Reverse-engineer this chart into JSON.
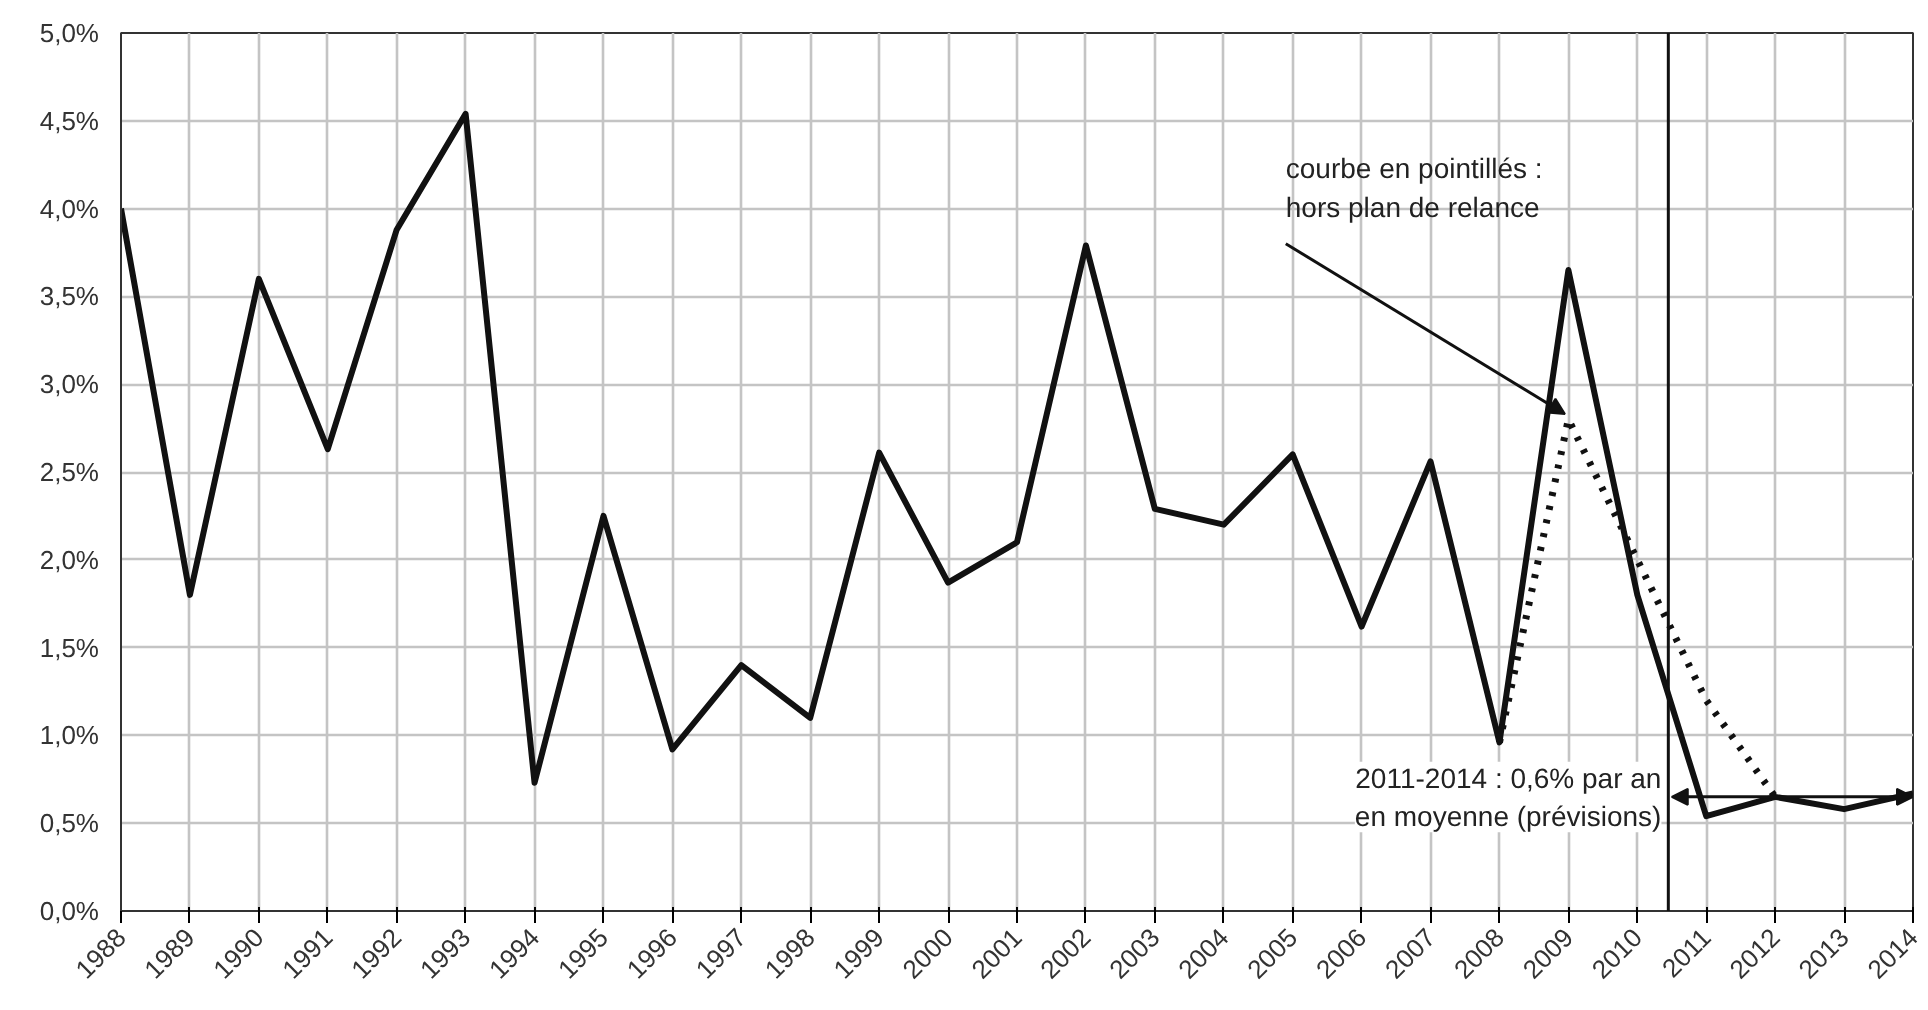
{
  "chart_data": {
    "type": "line",
    "x": [
      1988,
      1989,
      1990,
      1991,
      1992,
      1993,
      1994,
      1995,
      1996,
      1997,
      1998,
      1999,
      2000,
      2001,
      2002,
      2003,
      2004,
      2005,
      2006,
      2007,
      2008,
      2009,
      2010,
      2011,
      2012,
      2013,
      2014
    ],
    "series": [
      {
        "color": "#111111",
        "line_style": "solid",
        "values": [
          4.0,
          1.8,
          3.6,
          2.63,
          3.88,
          4.54,
          0.73,
          2.25,
          0.92,
          1.4,
          1.1,
          2.61,
          1.87,
          2.1,
          3.79,
          2.29,
          2.2,
          2.6,
          1.62,
          2.56,
          0.96,
          3.65,
          1.8,
          0.54,
          0.65,
          0.58,
          0.67
        ]
      },
      {
        "color": "#111111",
        "line_style": "dotted",
        "x": [
          2008,
          2009,
          2010,
          2011,
          2012
        ],
        "values": [
          0.96,
          2.8,
          2.0,
          1.2,
          0.65
        ]
      }
    ],
    "xlim": [
      1988,
      2014
    ],
    "xticks": [
      1988,
      1989,
      1990,
      1991,
      1992,
      1993,
      1994,
      1995,
      1996,
      1997,
      1998,
      1999,
      2000,
      2001,
      2002,
      2003,
      2004,
      2005,
      2006,
      2007,
      2008,
      2009,
      2010,
      2011,
      2012,
      2013,
      2014
    ],
    "ylim": [
      0,
      5
    ],
    "yticks": [
      {
        "value": 0,
        "label": "0,0%"
      },
      {
        "value": 0.5,
        "label": "0,5%"
      },
      {
        "value": 1,
        "label": "1,0%"
      },
      {
        "value": 1.5,
        "label": "1,5%"
      },
      {
        "value": 2,
        "label": "2,0%"
      },
      {
        "value": 2.5,
        "label": "2,5%"
      },
      {
        "value": 3,
        "label": "3,0%"
      },
      {
        "value": 3.5,
        "label": "3,5%"
      },
      {
        "value": 4,
        "label": "4,0%"
      },
      {
        "value": 4.5,
        "label": "4,5%"
      },
      {
        "value": 5,
        "label": "5,0%"
      }
    ],
    "grid": true,
    "ref_lines": [
      {
        "axis": "x",
        "value": 2010.45,
        "color": "#111111"
      }
    ],
    "annotations": [
      {
        "text": "courbe en pointillés :\nhors plan de relance",
        "x": 2009,
        "y": 2.8
      },
      {
        "text": "2011-2014 : 0,6% par an\nen moyenne (prévisions)",
        "x": 2010.45,
        "y": 0.65
      }
    ]
  }
}
